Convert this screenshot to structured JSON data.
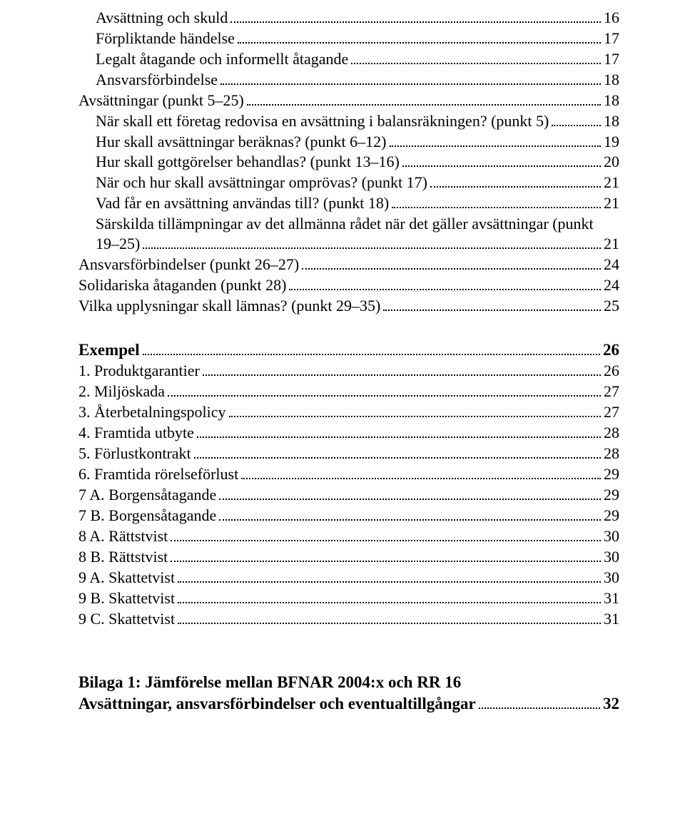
{
  "toc": {
    "group1": [
      {
        "title": "Avsättning och skuld",
        "page": "16",
        "indent": 1
      },
      {
        "title": "Förpliktande händelse",
        "page": "17",
        "indent": 1
      },
      {
        "title": "Legalt åtagande och informellt åtagande",
        "page": "17",
        "indent": 1
      },
      {
        "title": "Ansvarsförbindelse",
        "page": "18",
        "indent": 1
      },
      {
        "title": "Avsättningar (punkt 5–25)",
        "page": "18",
        "indent": 0
      },
      {
        "title": "När skall ett företag redovisa en avsättning i balansräkningen? (punkt 5)",
        "page": "18",
        "indent": 1
      },
      {
        "title": "Hur skall avsättningar beräknas? (punkt 6–12)",
        "page": "19",
        "indent": 1
      },
      {
        "title": "Hur skall gottgörelser behandlas? (punkt 13–16)",
        "page": "20",
        "indent": 1
      },
      {
        "title": "När och hur skall avsättningar omprövas? (punkt 17)",
        "page": "21",
        "indent": 1
      },
      {
        "title": "Vad får en avsättning användas till? (punkt 18)",
        "page": "21",
        "indent": 1
      }
    ],
    "multi1": {
      "line1": "Särskilda tillämpningar av det allmänna rådet när det gäller avsättningar (punkt",
      "line2": "19–25)",
      "page": "21"
    },
    "group2": [
      {
        "title": "Ansvarsförbindelser (punkt 26–27)",
        "page": "24",
        "indent": 0
      },
      {
        "title": "Solidariska åtaganden (punkt 28)",
        "page": "24",
        "indent": 0
      },
      {
        "title": "Vilka upplysningar skall lämnas? (punkt 29–35)",
        "page": "25",
        "indent": 0
      }
    ],
    "section_exempel": {
      "title": "Exempel",
      "page": "26"
    },
    "group3": [
      {
        "title": "1. Produktgarantier",
        "page": "26"
      },
      {
        "title": "2. Miljöskada",
        "page": "27"
      },
      {
        "title": "3. Återbetalningspolicy",
        "page": "27"
      },
      {
        "title": "4. Framtida utbyte",
        "page": "28"
      },
      {
        "title": "5. Förlustkontrakt",
        "page": "28"
      },
      {
        "title": "6. Framtida rörelseförlust",
        "page": "29"
      },
      {
        "title": "7 A. Borgensåtagande",
        "page": "29"
      },
      {
        "title": "7 B. Borgensåtagande",
        "page": "29"
      },
      {
        "title": "8 A. Rättstvist",
        "page": "30"
      },
      {
        "title": "8 B. Rättstvist",
        "page": "30"
      },
      {
        "title": "9 A. Skattetvist",
        "page": "30"
      },
      {
        "title": "9 B. Skattetvist",
        "page": "31"
      },
      {
        "title": "9 C. Skattetvist",
        "page": "31"
      }
    ],
    "footer": {
      "line1": "Bilaga 1: Jämförelse mellan BFNAR 2004:x och RR 16",
      "line2": "Avsättningar, ansvarsförbindelser och eventualtillgångar",
      "page": "32"
    }
  }
}
